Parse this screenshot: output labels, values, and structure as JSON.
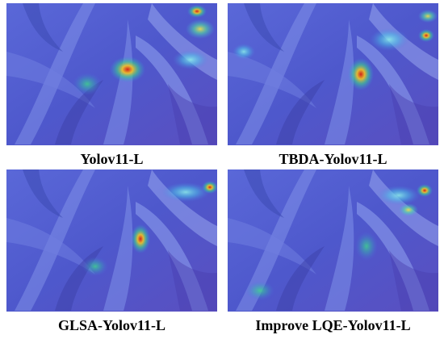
{
  "panels": [
    {
      "caption": "Yolov11-L"
    },
    {
      "caption": "TBDA-Yolov11-L"
    },
    {
      "caption": "GLSA-Yolov11-L"
    },
    {
      "caption": "Improve LQE-Yolov11-L"
    }
  ]
}
